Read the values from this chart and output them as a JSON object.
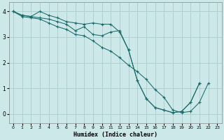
{
  "xlabel": "Humidex (Indice chaleur)",
  "background_color": "#cce8e8",
  "grid_color": "#aacccc",
  "line_color": "#1a6b6b",
  "xlim": [
    -0.5,
    23.5
  ],
  "ylim": [
    -0.35,
    4.35
  ],
  "xticks": [
    0,
    1,
    2,
    3,
    4,
    5,
    6,
    7,
    8,
    9,
    10,
    11,
    12,
    13,
    14,
    15,
    16,
    17,
    18,
    19,
    20,
    21,
    22,
    23
  ],
  "yticks": [
    0,
    1,
    2,
    3,
    4
  ],
  "line1_x": [
    0,
    1,
    2,
    3,
    4,
    5,
    6,
    7,
    8,
    9,
    10,
    11,
    12,
    13,
    14,
    15,
    16,
    17,
    18,
    19,
    20,
    21,
    22
  ],
  "line1_y": [
    4.0,
    3.85,
    3.8,
    4.0,
    3.85,
    3.75,
    3.6,
    3.55,
    3.5,
    3.55,
    3.5,
    3.5,
    3.2,
    2.5,
    1.3,
    0.6,
    0.25,
    0.15,
    0.05,
    0.1,
    0.45,
    1.2,
    null
  ],
  "line2_x": [
    0,
    1,
    2,
    3,
    4,
    5,
    6,
    7,
    8,
    9,
    10,
    11,
    12,
    13,
    14,
    15,
    16,
    17,
    18,
    19,
    20,
    21,
    22
  ],
  "line2_y": [
    4.0,
    3.85,
    3.8,
    3.75,
    3.7,
    3.6,
    3.5,
    3.25,
    3.4,
    3.1,
    3.05,
    3.2,
    3.25,
    2.5,
    1.3,
    0.6,
    0.25,
    0.15,
    0.05,
    0.1,
    0.45,
    1.2,
    null
  ],
  "line3_x": [
    0,
    1,
    2,
    3,
    4,
    5,
    6,
    7,
    8,
    9,
    10,
    11,
    12,
    13,
    14,
    15,
    16,
    17,
    18,
    19,
    20,
    21,
    22
  ],
  "line3_y": [
    4.0,
    3.8,
    3.75,
    3.7,
    3.55,
    3.4,
    3.3,
    3.1,
    3.05,
    2.85,
    2.6,
    2.45,
    2.2,
    1.9,
    1.65,
    1.35,
    0.95,
    0.65,
    0.15,
    0.05,
    0.1,
    0.45,
    1.2
  ]
}
